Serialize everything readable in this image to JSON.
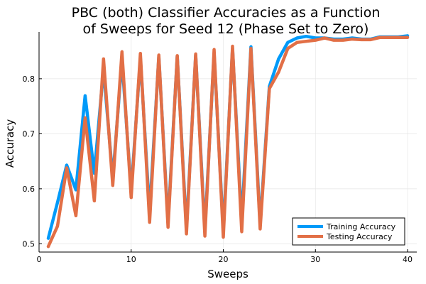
{
  "chart_data": {
    "type": "line",
    "title": [
      "PBC (both) Classifier Accuracies as a Function",
      "of Sweeps for Seed 12 (Phase Set to Zero)"
    ],
    "xlabel": "Sweeps",
    "ylabel": "Accuracy",
    "xlim": [
      0,
      41
    ],
    "ylim": [
      0.485,
      0.885
    ],
    "xticks": [
      0,
      10,
      20,
      30,
      40
    ],
    "yticks": [
      0.5,
      0.6,
      0.7,
      0.8
    ],
    "xtick_labels": [
      "0",
      "10",
      "20",
      "30",
      "40"
    ],
    "ytick_labels": [
      "0.5",
      "0.6",
      "0.7",
      "0.8"
    ],
    "grid": true,
    "legend_position": "bottom-right",
    "x": [
      1,
      2,
      3,
      4,
      5,
      6,
      7,
      8,
      9,
      10,
      11,
      12,
      13,
      14,
      15,
      16,
      17,
      18,
      19,
      20,
      21,
      22,
      23,
      24,
      25,
      26,
      27,
      28,
      29,
      30,
      31,
      32,
      33,
      34,
      35,
      36,
      37,
      38,
      39,
      40
    ],
    "series": [
      {
        "name": "Training Accuracy",
        "color": "#009af9",
        "values": [
          0.51,
          0.575,
          0.643,
          0.598,
          0.769,
          0.628,
          0.818,
          0.618,
          0.835,
          0.595,
          0.838,
          0.556,
          0.84,
          0.538,
          0.841,
          0.526,
          0.843,
          0.524,
          0.847,
          0.522,
          0.855,
          0.54,
          0.858,
          0.535,
          0.786,
          0.836,
          0.866,
          0.874,
          0.877,
          0.874,
          0.874,
          0.872,
          0.872,
          0.874,
          0.872,
          0.872,
          0.876,
          0.876,
          0.876,
          0.878
        ]
      },
      {
        "name": "Testing Accuracy",
        "color": "#e26f46",
        "values": [
          0.495,
          0.532,
          0.638,
          0.551,
          0.729,
          0.578,
          0.836,
          0.606,
          0.849,
          0.584,
          0.846,
          0.539,
          0.843,
          0.53,
          0.842,
          0.518,
          0.845,
          0.514,
          0.853,
          0.512,
          0.859,
          0.522,
          0.855,
          0.527,
          0.782,
          0.812,
          0.855,
          0.866,
          0.868,
          0.87,
          0.874,
          0.87,
          0.87,
          0.872,
          0.871,
          0.871,
          0.875,
          0.875,
          0.875,
          0.875
        ]
      }
    ]
  }
}
